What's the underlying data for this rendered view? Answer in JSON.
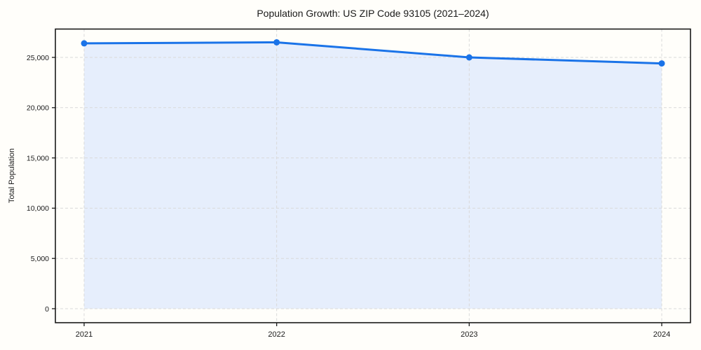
{
  "chart_data": {
    "type": "area",
    "title": "Population Growth: US ZIP Code 93105 (2021–2024)",
    "xlabel": "",
    "ylabel": "Total Population",
    "x": [
      2021,
      2022,
      2023,
      2024
    ],
    "xtick_labels": [
      "2021",
      "2022",
      "2023",
      "2024"
    ],
    "series": [
      {
        "name": "Total Population",
        "values": [
          26400,
          26500,
          25000,
          24400
        ]
      }
    ],
    "yticks": [
      0,
      5000,
      10000,
      15000,
      20000,
      25000
    ],
    "ylim": [
      -1400,
      27800
    ],
    "xlim": [
      2020.85,
      2024.15
    ],
    "grid": true,
    "grid_style": "dashed",
    "legend_position": "none",
    "marker": "circle",
    "colors": {
      "line": "#1a73e8",
      "fill": "#e6eefc",
      "grid": "#d9d9d9",
      "axis": "#1a1a1a",
      "text": "#1a1a1a"
    }
  }
}
